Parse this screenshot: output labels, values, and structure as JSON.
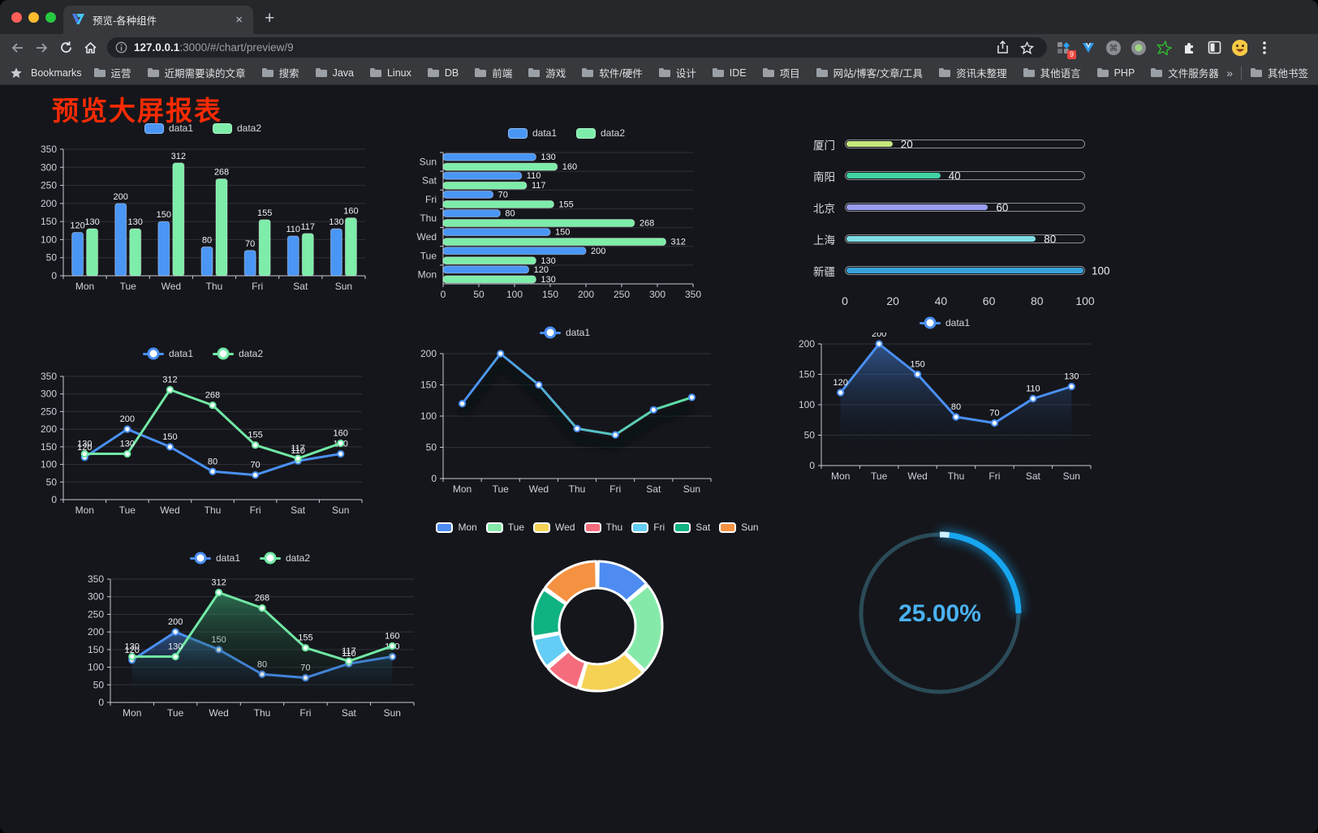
{
  "browser": {
    "tab": {
      "title": "预览-各种组件",
      "close": "×",
      "new_tab": "+"
    },
    "toolbar": {
      "url_host": "127.0.0.1",
      "url_path": ":3000/#/chart/preview/9",
      "badge": "9"
    },
    "bookmarks": {
      "label": "Bookmarks",
      "folders": [
        "运营",
        "近期需要读的文章",
        "搜索",
        "Java",
        "Linux",
        "DB",
        "前端",
        "游戏",
        "软件/硬件",
        "设计",
        "IDE",
        "项目",
        "网站/博客/文章/工具",
        "资讯未整理",
        "其他语言",
        "PHP",
        "文件服务器"
      ],
      "overflow": "»",
      "other": "其他书签"
    }
  },
  "page": {
    "title": "预览大屏报表",
    "title_color": "#fb2b04"
  },
  "chart_data": [
    {
      "id": "bar1",
      "type": "bar",
      "legend_style": "rect",
      "categories": [
        "Mon",
        "Tue",
        "Wed",
        "Thu",
        "Fri",
        "Sat",
        "Sun"
      ],
      "series": [
        {
          "name": "data1",
          "color": "#4a96f5",
          "values": [
            120,
            200,
            150,
            80,
            70,
            110,
            130
          ]
        },
        {
          "name": "data2",
          "color": "#7deda9",
          "values": [
            130,
            130,
            312,
            268,
            155,
            117,
            160
          ]
        }
      ],
      "ylim": [
        0,
        350
      ],
      "ystep": 50,
      "labels": true
    },
    {
      "id": "hbar1",
      "type": "hbar",
      "legend_style": "rect",
      "categories": [
        "Mon",
        "Tue",
        "Wed",
        "Thu",
        "Fri",
        "Sat",
        "Sun"
      ],
      "series": [
        {
          "name": "data1",
          "color": "#4a96f5",
          "values": [
            120,
            200,
            150,
            80,
            70,
            110,
            130
          ]
        },
        {
          "name": "data2",
          "color": "#7deda9",
          "values": [
            130,
            130,
            312,
            268,
            155,
            117,
            160
          ]
        }
      ],
      "xlim": [
        0,
        350
      ],
      "xstep": 50,
      "labels": true
    },
    {
      "id": "progress1",
      "type": "progress",
      "max": 100,
      "xticks": [
        0,
        20,
        40,
        60,
        80,
        100
      ],
      "items": [
        {
          "label": "厦门",
          "value": 20,
          "color": "#c6e87d"
        },
        {
          "label": "南阳",
          "value": 40,
          "color": "#41d3a2"
        },
        {
          "label": "北京",
          "value": 60,
          "color": "#989df0"
        },
        {
          "label": "上海",
          "value": 80,
          "color": "#7edde2"
        },
        {
          "label": "新疆",
          "value": 100,
          "color": "#37a2da"
        }
      ]
    },
    {
      "id": "line2",
      "type": "line",
      "legend_style": "dot",
      "categories": [
        "Mon",
        "Tue",
        "Wed",
        "Thu",
        "Fri",
        "Sat",
        "Sun"
      ],
      "series": [
        {
          "name": "data1",
          "color": "#4a90f5",
          "values": [
            120,
            200,
            150,
            80,
            70,
            110,
            130
          ],
          "labels": true
        },
        {
          "name": "data2",
          "color": "#71e8a5",
          "values": [
            130,
            130,
            312,
            268,
            155,
            117,
            160
          ],
          "labels": true
        }
      ],
      "ylim": [
        0,
        350
      ],
      "ystep": 50
    },
    {
      "id": "line1",
      "type": "line",
      "legend_style": "dot",
      "shadow": true,
      "categories": [
        "Mon",
        "Tue",
        "Wed",
        "Thu",
        "Fri",
        "Sat",
        "Sun"
      ],
      "series": [
        {
          "name": "data1",
          "color": "#4a90f5",
          "gradient": [
            "#4a90f5",
            "#5fe3a1"
          ],
          "values": [
            120,
            200,
            150,
            80,
            70,
            110,
            130
          ],
          "labels": false
        }
      ],
      "ylim": [
        0,
        200
      ],
      "ystep": 50
    },
    {
      "id": "area1",
      "type": "line",
      "legend_style": "dot",
      "categories": [
        "Mon",
        "Tue",
        "Wed",
        "Thu",
        "Fri",
        "Sat",
        "Sun"
      ],
      "series": [
        {
          "name": "data1",
          "color": "#4a90f5",
          "area": "rgba(74,144,245,0.5)",
          "values": [
            120,
            200,
            150,
            80,
            70,
            110,
            130
          ],
          "labels": true
        }
      ],
      "ylim": [
        0,
        200
      ],
      "ystep": 50
    },
    {
      "id": "area2",
      "type": "line",
      "legend_style": "dot",
      "categories": [
        "Mon",
        "Tue",
        "Wed",
        "Thu",
        "Fri",
        "Sat",
        "Sun"
      ],
      "series": [
        {
          "name": "data1",
          "color": "#4a90f5",
          "area": "rgba(74,144,245,0.5)",
          "values": [
            120,
            200,
            150,
            80,
            70,
            110,
            130
          ],
          "labels": true
        },
        {
          "name": "data2",
          "color": "#71e8a5",
          "area": "rgba(64,180,125,0.55)",
          "values": [
            130,
            130,
            312,
            268,
            155,
            117,
            160
          ],
          "labels": true
        }
      ],
      "ylim": [
        0,
        350
      ],
      "ystep": 50
    },
    {
      "id": "pie1",
      "type": "donut",
      "legend_style": "pill",
      "items": [
        {
          "label": "Mon",
          "value": 120,
          "color": "#4e8cf2"
        },
        {
          "label": "Tue",
          "value": 200,
          "color": "#85eaa9"
        },
        {
          "label": "Wed",
          "value": 150,
          "color": "#f5d254"
        },
        {
          "label": "Thu",
          "value": 80,
          "color": "#f56d7c"
        },
        {
          "label": "Fri",
          "value": 70,
          "color": "#63cdf5"
        },
        {
          "label": "Sat",
          "value": 110,
          "color": "#0fb281"
        },
        {
          "label": "Sun",
          "value": 130,
          "color": "#f59242"
        }
      ]
    },
    {
      "id": "gauge1",
      "type": "gauge",
      "value": 25,
      "max": 100,
      "value_label": "25.00%",
      "color": "#17a6f0",
      "track": "#2b4b58",
      "text_color": "#4ab2f2"
    }
  ]
}
